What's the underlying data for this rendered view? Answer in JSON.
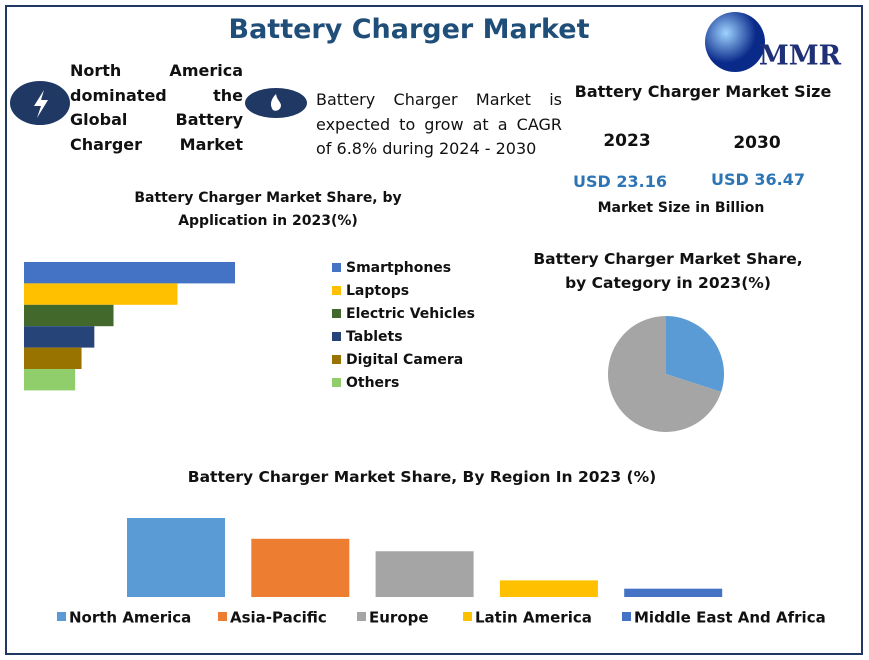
{
  "title": "Battery Charger Market",
  "logo": "MMR",
  "highlight_left": "North America dominated the Global Battery Charger Market",
  "highlight_right": "Battery Charger Market is expected to grow at a CAGR of  6.8% during 2024 - 2030",
  "market_size": {
    "title": "Battery Charger Market Size",
    "years": [
      "2023",
      "2030"
    ],
    "values": [
      "USD 23.16",
      "USD 36.47"
    ],
    "note": "Market Size in Billion"
  },
  "chart_data": [
    {
      "type": "hbar",
      "title": "Battery Charger Market Share, by Application in 2023(%)",
      "categories": [
        "Smartphones",
        "Laptops",
        "Electric Vehicles",
        "Tablets",
        "Digital Camera",
        "Others"
      ],
      "values": [
        33,
        24,
        14,
        11,
        9,
        8
      ],
      "colors": [
        "#4472c4",
        "#ffc000",
        "#43682b",
        "#264478",
        "#997300",
        "#8fce6a"
      ]
    },
    {
      "type": "pie",
      "title": "Battery Charger Market Share, by Category in 2023(%)",
      "values": [
        30,
        70
      ],
      "colors": [
        "#5b9bd5",
        "#a5a5a5"
      ]
    },
    {
      "type": "bar",
      "title": "Battery Charger Market Share, By Region In 2023 (%)",
      "categories": [
        "North America",
        "Asia-Pacific",
        "Europe",
        "Latin America",
        "Middle East And Africa"
      ],
      "values": [
        38,
        28,
        22,
        8,
        4
      ],
      "colors": [
        "#5b9bd5",
        "#ed7d31",
        "#a5a5a5",
        "#ffc000",
        "#4472c4"
      ]
    }
  ]
}
